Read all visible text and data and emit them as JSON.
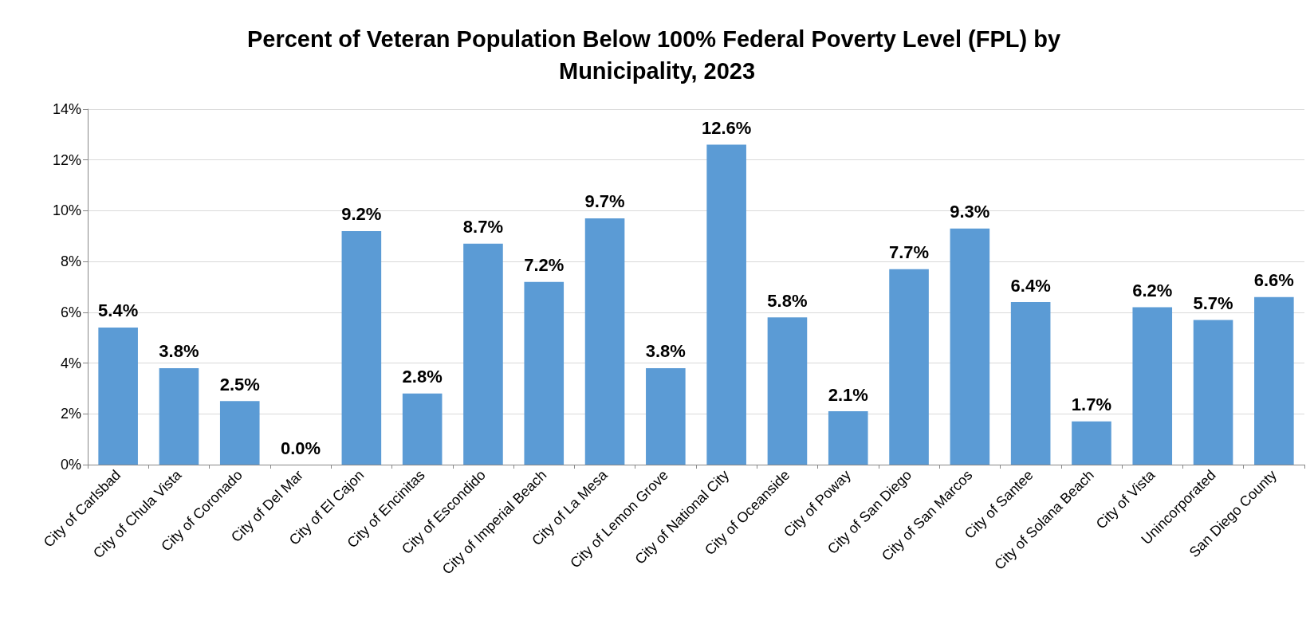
{
  "chart_data": {
    "type": "bar",
    "title": "Percent of Veteran Population Below 100% Federal Poverty Level (FPL) by Municipality, 2023",
    "categories": [
      "City of Carlsbad",
      "City of Chula Vista",
      "City of Coronado",
      "City of Del Mar",
      "City of El Cajon",
      "City of Encinitas",
      "City of Escondido",
      "City of Imperial Beach",
      "City of La Mesa",
      "City of Lemon Grove",
      "City of National City",
      "City of Oceanside",
      "City of Poway",
      "City of San Diego",
      "City of San Marcos",
      "City of Santee",
      "City of Solana Beach",
      "City of Vista",
      "Unincorporated",
      "San Diego County"
    ],
    "values": [
      5.4,
      3.8,
      2.5,
      0.0,
      9.2,
      2.8,
      8.7,
      7.2,
      9.7,
      3.8,
      12.6,
      5.8,
      2.1,
      7.7,
      9.3,
      6.4,
      1.7,
      6.2,
      5.7,
      6.6
    ],
    "value_labels": [
      "5.4%",
      "3.8%",
      "2.5%",
      "0.0%",
      "9.2%",
      "2.8%",
      "8.7%",
      "7.2%",
      "9.7%",
      "3.8%",
      "12.6%",
      "5.8%",
      "2.1%",
      "7.7%",
      "9.3%",
      "6.4%",
      "1.7%",
      "6.2%",
      "5.7%",
      "6.6%"
    ],
    "color": "#5b9bd5",
    "ylim": [
      0,
      14
    ],
    "yticks": [
      {
        "value": 0,
        "label": "0%"
      },
      {
        "value": 2,
        "label": "2%"
      },
      {
        "value": 4,
        "label": "4%"
      },
      {
        "value": 6,
        "label": "6%"
      },
      {
        "value": 8,
        "label": "8%"
      },
      {
        "value": 10,
        "label": "10%"
      },
      {
        "value": 12,
        "label": "12%"
      },
      {
        "value": 14,
        "label": "14%"
      }
    ],
    "grid": "y"
  }
}
